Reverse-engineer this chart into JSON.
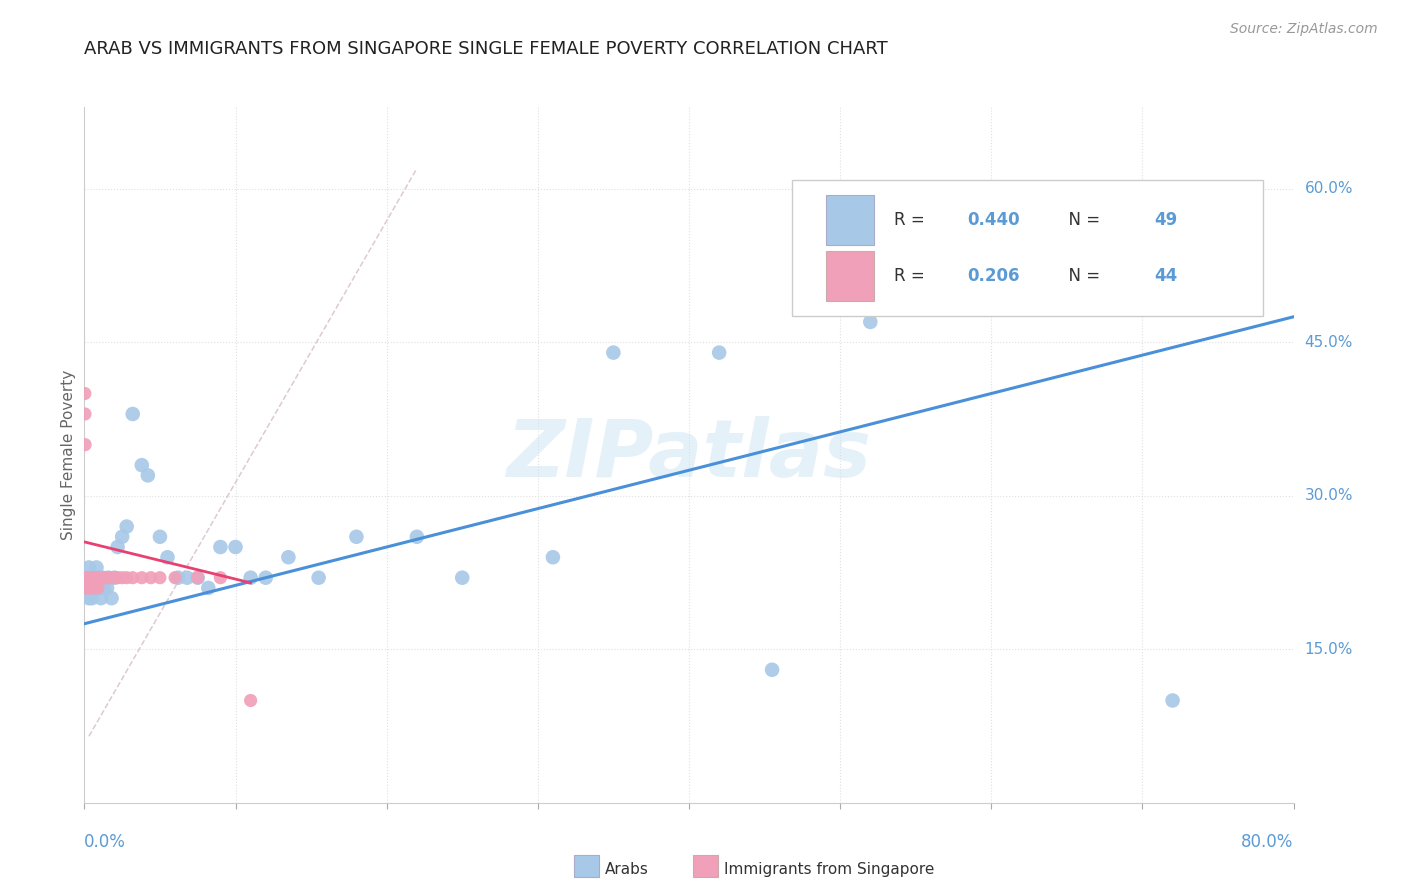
{
  "title": "ARAB VS IMMIGRANTS FROM SINGAPORE SINGLE FEMALE POVERTY CORRELATION CHART",
  "source": "Source: ZipAtlas.com",
  "ylabel": "Single Female Poverty",
  "right_yticks": [
    "60.0%",
    "45.0%",
    "30.0%",
    "15.0%"
  ],
  "right_ytick_vals": [
    0.6,
    0.45,
    0.3,
    0.15
  ],
  "watermark": "ZIPatlas",
  "arab_color": "#a8c8e8",
  "sing_color": "#f0a0b8",
  "trendline_arab_color": "#4a90d9",
  "trendline_sing_color": "#e84070",
  "diag_color": "#d8c0cc",
  "xlim": [
    0.0,
    0.8
  ],
  "ylim": [
    0.0,
    0.68
  ],
  "background_color": "#ffffff",
  "axis_label_color": "#5b9bd5",
  "legend_R1": "0.440",
  "legend_N1": "49",
  "legend_R2": "0.206",
  "legend_N2": "44",
  "arab_x": [
    0.001,
    0.002,
    0.002,
    0.003,
    0.003,
    0.004,
    0.005,
    0.005,
    0.006,
    0.007,
    0.008,
    0.009,
    0.01,
    0.011,
    0.012,
    0.013,
    0.015,
    0.016,
    0.018,
    0.02,
    0.022,
    0.025,
    0.028,
    0.032,
    0.038,
    0.042,
    0.05,
    0.055,
    0.062,
    0.068,
    0.075,
    0.082,
    0.09,
    0.1,
    0.11,
    0.12,
    0.135,
    0.155,
    0.18,
    0.22,
    0.25,
    0.31,
    0.35,
    0.42,
    0.455,
    0.52,
    0.58,
    0.68,
    0.72
  ],
  "arab_y": [
    0.22,
    0.22,
    0.21,
    0.2,
    0.23,
    0.22,
    0.22,
    0.2,
    0.21,
    0.22,
    0.23,
    0.22,
    0.21,
    0.2,
    0.22,
    0.21,
    0.21,
    0.22,
    0.2,
    0.22,
    0.25,
    0.26,
    0.27,
    0.38,
    0.33,
    0.32,
    0.26,
    0.24,
    0.22,
    0.22,
    0.22,
    0.21,
    0.25,
    0.25,
    0.22,
    0.22,
    0.24,
    0.22,
    0.26,
    0.26,
    0.22,
    0.24,
    0.44,
    0.44,
    0.13,
    0.47,
    0.55,
    0.57,
    0.1
  ],
  "sing_x": [
    0.0003,
    0.0004,
    0.0005,
    0.001,
    0.001,
    0.001,
    0.002,
    0.002,
    0.002,
    0.003,
    0.003,
    0.003,
    0.004,
    0.004,
    0.004,
    0.005,
    0.005,
    0.006,
    0.006,
    0.007,
    0.007,
    0.008,
    0.008,
    0.009,
    0.01,
    0.011,
    0.012,
    0.013,
    0.014,
    0.015,
    0.016,
    0.018,
    0.02,
    0.022,
    0.025,
    0.028,
    0.032,
    0.038,
    0.044,
    0.05,
    0.06,
    0.075,
    0.09,
    0.11
  ],
  "sing_y": [
    0.4,
    0.38,
    0.35,
    0.22,
    0.22,
    0.21,
    0.22,
    0.22,
    0.21,
    0.22,
    0.22,
    0.21,
    0.22,
    0.22,
    0.21,
    0.22,
    0.21,
    0.22,
    0.22,
    0.22,
    0.21,
    0.22,
    0.22,
    0.21,
    0.22,
    0.22,
    0.22,
    0.22,
    0.22,
    0.22,
    0.22,
    0.22,
    0.22,
    0.22,
    0.22,
    0.22,
    0.22,
    0.22,
    0.22,
    0.22,
    0.22,
    0.22,
    0.22,
    0.1
  ]
}
